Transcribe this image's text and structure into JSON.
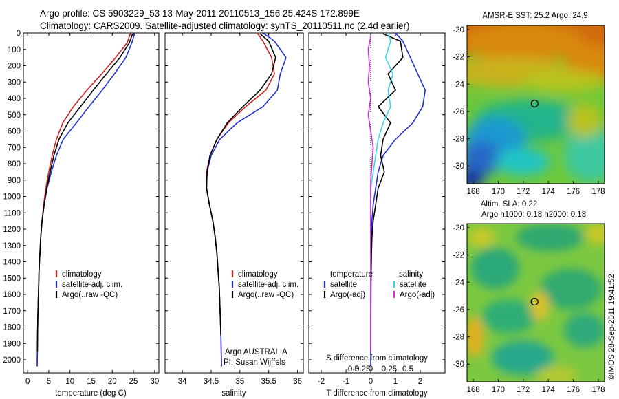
{
  "header": {
    "line1": "Argo profile: CS 5903229_53 13-May-2011 20110513_156 25.424S 172.899E",
    "line2": "Climatology: CARS2009. Satellite-adjusted climatology: synTS_20110511.nc (2.4d earlier)"
  },
  "colors": {
    "climatology": "#d21f1f",
    "satellite": "#1f2ed6",
    "argo": "#000000",
    "sat_salinity": "#33d6e6",
    "argo_salinity": "#d629d6"
  },
  "chart_data": [
    {
      "type": "line",
      "name": "temperature-panel",
      "xlabel": "temperature (deg C)",
      "ylabel": "",
      "xlim": [
        -1,
        31
      ],
      "ylim": [
        2080,
        0
      ],
      "xticks": [
        0,
        5,
        10,
        15,
        20,
        25,
        30
      ],
      "yticks": [
        0,
        100,
        200,
        300,
        400,
        500,
        600,
        700,
        800,
        900,
        1000,
        1100,
        1200,
        1300,
        1400,
        1500,
        1600,
        1700,
        1800,
        1900,
        2000
      ],
      "legend": [
        "climatology",
        "satellite-adj. clim.",
        "Argo(..raw -QC)"
      ],
      "series": [
        {
          "name": "climatology",
          "color": "#d21f1f",
          "x": [
            24.3,
            23.5,
            20.8,
            17.5,
            14.0,
            10.8,
            8.3,
            6.8,
            5.8,
            5.0,
            4.3,
            3.8,
            3.4,
            3.1,
            2.9,
            2.7,
            2.6,
            2.5,
            2.4,
            2.35,
            2.3,
            2.25
          ],
          "y": [
            0,
            60,
            150,
            250,
            350,
            450,
            550,
            650,
            750,
            850,
            950,
            1050,
            1150,
            1250,
            1350,
            1450,
            1550,
            1650,
            1750,
            1850,
            1950,
            2040
          ]
        },
        {
          "name": "satellite-adj. clim.",
          "color": "#1f2ed6",
          "x": [
            25.3,
            24.6,
            23.2,
            20.5,
            17.6,
            14.5,
            11.5,
            8.4,
            6.8,
            5.6,
            4.6,
            3.9,
            3.4,
            3.1,
            2.9,
            2.7,
            2.6,
            2.5,
            2.4,
            2.35,
            2.3,
            2.25
          ],
          "y": [
            0,
            60,
            150,
            250,
            350,
            450,
            550,
            650,
            750,
            850,
            950,
            1050,
            1150,
            1250,
            1350,
            1450,
            1550,
            1650,
            1750,
            1850,
            1950,
            2040
          ]
        },
        {
          "name": "Argo(..raw -QC)",
          "color": "#000000",
          "x": [
            24.8,
            24.0,
            21.8,
            18.6,
            15.5,
            12.5,
            9.5,
            7.4,
            6.2,
            5.3,
            4.5,
            3.9,
            3.4,
            3.1,
            2.9,
            2.7,
            2.6,
            2.5,
            2.4,
            2.35,
            2.3
          ],
          "y": [
            5,
            60,
            150,
            250,
            350,
            450,
            550,
            650,
            750,
            850,
            950,
            1050,
            1150,
            1250,
            1350,
            1450,
            1550,
            1650,
            1750,
            1850,
            1950
          ]
        }
      ]
    },
    {
      "type": "line",
      "name": "salinity-panel",
      "xlabel": "salinity",
      "xlim": [
        33.7,
        36.1
      ],
      "ylim": [
        2080,
        0
      ],
      "xticks": [
        34,
        34.5,
        35,
        35.5,
        36
      ],
      "legend": [
        "climatology",
        "satellite-adj. clim.",
        "Argo(..raw -QC)"
      ],
      "annotation": [
        "Argo AUSTRALIA",
        "PI: Susan Wijffels"
      ],
      "series": [
        {
          "name": "climatology",
          "color": "#d21f1f",
          "x": [
            35.3,
            35.4,
            35.55,
            35.6,
            35.45,
            35.1,
            34.8,
            34.6,
            34.48,
            34.42,
            34.42,
            34.47,
            34.53,
            34.57,
            34.6,
            34.62,
            34.64,
            34.65,
            34.66,
            34.67,
            34.68
          ],
          "y": [
            0,
            50,
            150,
            250,
            350,
            450,
            550,
            650,
            750,
            850,
            950,
            1050,
            1150,
            1250,
            1350,
            1450,
            1550,
            1650,
            1750,
            1850,
            2040
          ]
        },
        {
          "name": "satellite-adj. clim.",
          "color": "#1f2ed6",
          "x": [
            35.4,
            35.6,
            35.8,
            35.7,
            35.65,
            35.4,
            34.95,
            34.65,
            34.5,
            34.43,
            34.42,
            34.47,
            34.53,
            34.57,
            34.6,
            34.62,
            34.64,
            34.65,
            34.66,
            34.67,
            34.68
          ],
          "y": [
            0,
            50,
            150,
            250,
            350,
            450,
            550,
            650,
            750,
            850,
            950,
            1050,
            1150,
            1250,
            1350,
            1450,
            1550,
            1650,
            1750,
            1850,
            2040
          ]
        },
        {
          "name": "Argo(..raw -QC)",
          "color": "#000000",
          "x": [
            35.35,
            35.5,
            35.62,
            35.55,
            35.35,
            35.05,
            34.78,
            34.6,
            34.48,
            34.43,
            34.42,
            34.47,
            34.53,
            34.57,
            34.6,
            34.62,
            34.64,
            34.65,
            34.66,
            34.67
          ],
          "y": [
            5,
            50,
            150,
            250,
            350,
            450,
            550,
            650,
            750,
            850,
            950,
            1050,
            1150,
            1250,
            1350,
            1450,
            1550,
            1650,
            1750,
            1850
          ]
        }
      ]
    },
    {
      "type": "line",
      "name": "difference-panel",
      "xlabel": "T difference from climatology",
      "xlabel2": "S difference from climatology",
      "xlim": [
        -2.5,
        3.0
      ],
      "ylim": [
        2080,
        0
      ],
      "xticks": [
        -2,
        -1,
        0,
        1,
        2
      ],
      "xticks2": [
        "-0.5",
        "-0.25",
        "0",
        "0.25",
        "0.5"
      ],
      "legend_titles": [
        "temperature",
        "salinity"
      ],
      "legend": [
        "satellite",
        "Argo(-adj)",
        "satellite",
        "Argo(-adj)"
      ],
      "series": [
        {
          "name": "temperature satellite",
          "color": "#1f2ed6",
          "x": [
            1.0,
            1.3,
            1.6,
            1.9,
            2.2,
            2.1,
            1.7,
            1.0,
            0.5,
            0.3,
            0.2,
            0.1,
            0.05,
            0.03,
            0.02,
            0.01,
            0.0,
            0.0,
            0.0
          ],
          "y": [
            0,
            50,
            150,
            250,
            350,
            450,
            550,
            650,
            750,
            850,
            950,
            1050,
            1150,
            1250,
            1350,
            1450,
            1550,
            1750,
            2040
          ]
        },
        {
          "name": "temperature Argo(-adj)",
          "color": "#000000",
          "x": [
            0.5,
            1.2,
            1.3,
            0.7,
            1.0,
            0.3,
            0.8,
            0.5,
            0.4,
            0.55,
            0.3,
            0.2,
            0.1,
            0.05,
            0.03,
            0.02,
            0.01,
            0.0
          ],
          "y": [
            5,
            50,
            150,
            250,
            350,
            450,
            550,
            650,
            750,
            850,
            950,
            1050,
            1150,
            1250,
            1350,
            1450,
            1550,
            1950
          ]
        },
        {
          "name": "salinity satellite",
          "color": "#33d6e6",
          "x": [
            0.7,
            0.8,
            0.6,
            0.9,
            0.7,
            0.8,
            0.5,
            0.3,
            0.2,
            0.1,
            0.0,
            0.0,
            0.0
          ],
          "y": [
            0,
            50,
            150,
            250,
            350,
            450,
            550,
            650,
            750,
            850,
            950,
            1150,
            1950
          ]
        },
        {
          "name": "salinity Argo(-adj)",
          "color": "#d629d6",
          "x": [
            0.0,
            -0.1,
            -0.05,
            -0.1,
            0.0,
            -0.1,
            0.0,
            0.1,
            0.05,
            0.0,
            0.0,
            0.0
          ],
          "y": [
            20,
            100,
            200,
            300,
            400,
            500,
            600,
            700,
            800,
            900,
            1050,
            1950
          ]
        }
      ]
    },
    {
      "type": "heatmap",
      "name": "sst-map",
      "title": "AMSR-E SST: 25.2 Argo: 24.9",
      "xlim": [
        167.5,
        178.5
      ],
      "ylim": [
        -31.3,
        -19.7
      ],
      "xticks": [
        168,
        170,
        172,
        174,
        176,
        178
      ],
      "yticks": [
        -20,
        -22,
        -24,
        -26,
        -28,
        -30
      ],
      "marker": {
        "lon": 172.899,
        "lat": -25.424
      }
    },
    {
      "type": "heatmap",
      "name": "sla-map",
      "title": "Altim. SLA: 0.22",
      "subtitle": "Argo h1000: 0.18 h2000: 0.18",
      "xlim": [
        167.5,
        178.5
      ],
      "ylim": [
        -31.3,
        -19.7
      ],
      "xticks": [
        168,
        170,
        172,
        174,
        176,
        178
      ],
      "yticks": [
        -20,
        -22,
        -24,
        -26,
        -28,
        -30
      ],
      "marker": {
        "lon": 172.899,
        "lat": -25.424
      }
    }
  ],
  "footer": {
    "stamp": "©IMOS 28-Sep-2011 19:41:52"
  }
}
